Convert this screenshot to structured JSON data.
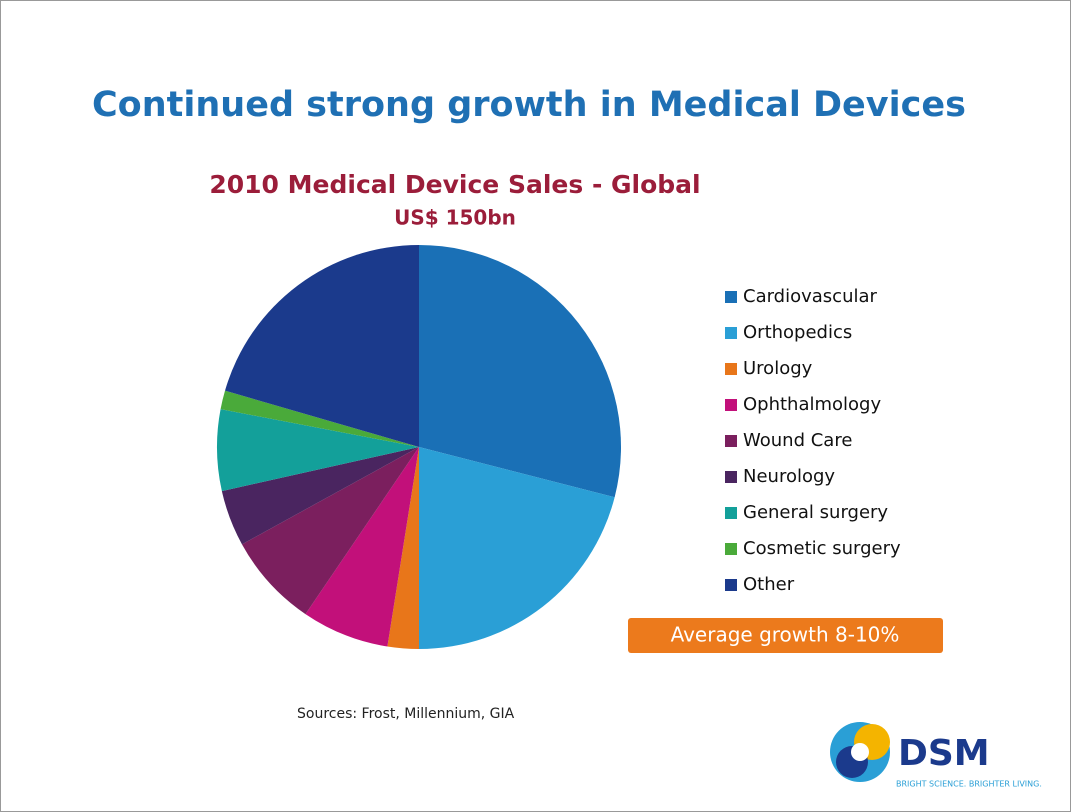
{
  "page_title": "Continued strong growth in Medical Devices",
  "chart_data": {
    "type": "pie",
    "title": "2010 Medical Device Sales - Global",
    "subtitle": "US$ 150bn",
    "categories": [
      "Cardiovascular",
      "Orthopedics",
      "Urology",
      "Ophthalmology",
      "Wound Care",
      "Neurology",
      "General surgery",
      "Cosmetic surgery",
      "Other"
    ],
    "values": [
      29,
      21,
      2.5,
      7,
      7.5,
      4.5,
      6.5,
      1.5,
      20.5
    ],
    "colors": [
      "#1a70b6",
      "#2a9fd6",
      "#e8761a",
      "#c2107a",
      "#7b1f5e",
      "#4a2560",
      "#13a09a",
      "#4aaa3a",
      "#1b3a8c"
    ],
    "legend": "right",
    "annotation": "Average growth 8-10%",
    "source": "Sources: Frost, Millennium, GIA"
  },
  "logo": {
    "name": "DSM",
    "tagline": "BRIGHT SCIENCE. BRIGHTER LIVING."
  }
}
